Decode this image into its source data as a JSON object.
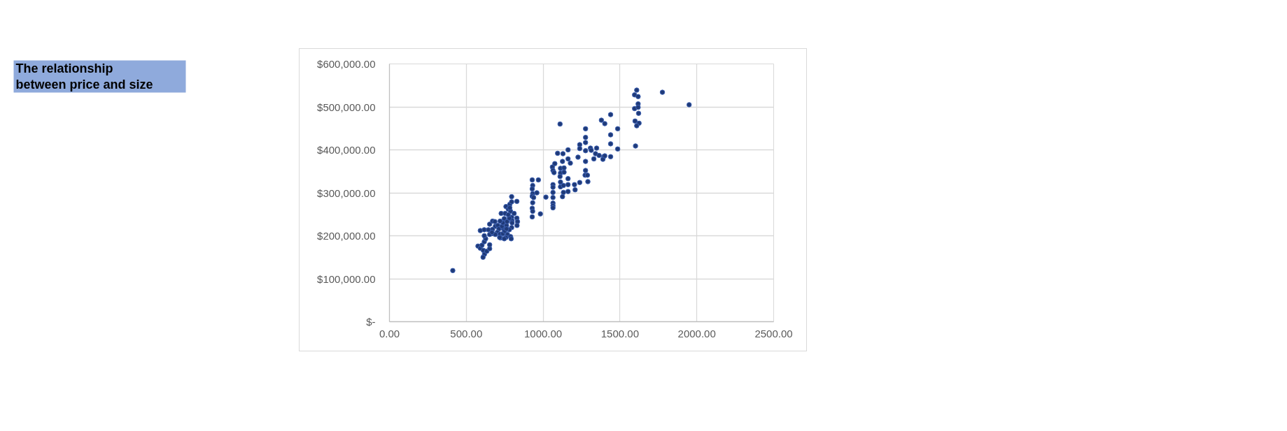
{
  "chart_data": {
    "type": "scatter",
    "title": "The relationship between price and size",
    "x": [
      412,
      576,
      591,
      602,
      611,
      618,
      609,
      633,
      652,
      652,
      617,
      626,
      617,
      591,
      617,
      644,
      652,
      671,
      686,
      689,
      671,
      667,
      652,
      705,
      712,
      702,
      720,
      723,
      738,
      742,
      732,
      738,
      720,
      727,
      747,
      753,
      758,
      773,
      783,
      795,
      795,
      829,
      788,
      795,
      811,
      798,
      829,
      833,
      830,
      798,
      795,
      780,
      768,
      788,
      792,
      758,
      750,
      762,
      765,
      780,
      773,
      783,
      762,
      747,
      717,
      689,
      667,
      929,
      932,
      929,
      932,
      929,
      938,
      932,
      929,
      932,
      929,
      969,
      959,
      982,
      1018,
      1064,
      1064,
      1064,
      1064,
      1064,
      1064,
      1064,
      1060,
      1064,
      1076,
      1071,
      1094,
      1129,
      1162,
      1162,
      1177,
      1126,
      1113,
      1136,
      1113,
      1136,
      1110,
      1113,
      1113,
      1132,
      1132,
      1126,
      1162,
      1162,
      1162,
      1204,
      1208,
      1238,
      1227,
      1238,
      1238,
      1110,
      1439,
      1379,
      1401,
      1485,
      1276,
      1439,
      1276,
      1276,
      1276,
      1308,
      1313,
      1348,
      1439,
      1485,
      1341,
      1364,
      1394,
      1389,
      1401,
      1439,
      1330,
      1276,
      1276,
      1273,
      1288,
      1291,
      1609,
      1595,
      1618,
      1618,
      1595,
      1618,
      1621,
      1598,
      1624,
      1609,
      1601,
      1776,
      1950
    ],
    "values": [
      119000,
      176000,
      171000,
      178000,
      166000,
      157000,
      150000,
      164000,
      170000,
      179000,
      186000,
      193000,
      200000,
      212000,
      214000,
      214000,
      227000,
      234000,
      233000,
      222000,
      215000,
      205000,
      203000,
      224000,
      216000,
      208000,
      204000,
      195000,
      205000,
      216000,
      222000,
      230000,
      234000,
      252000,
      240000,
      252000,
      268000,
      262000,
      273000,
      279000,
      291000,
      280000,
      257000,
      243000,
      252000,
      235000,
      241000,
      233000,
      224000,
      230000,
      219000,
      214000,
      203000,
      198000,
      193000,
      196000,
      211000,
      224000,
      233000,
      241000,
      249000,
      265000,
      216000,
      193000,
      196000,
      203000,
      208000,
      330000,
      317000,
      309000,
      298000,
      292000,
      289000,
      277000,
      264000,
      257000,
      244000,
      330000,
      300000,
      251000,
      290000,
      319000,
      313000,
      301000,
      289000,
      276000,
      270000,
      265000,
      360000,
      352000,
      368000,
      347000,
      392000,
      391000,
      400000,
      379000,
      369000,
      373000,
      357000,
      358000,
      346000,
      348000,
      338000,
      325000,
      314000,
      317000,
      301000,
      291000,
      333000,
      319000,
      303000,
      319000,
      307000,
      324000,
      383000,
      412000,
      403000,
      460000,
      482000,
      469000,
      461000,
      449000,
      449000,
      435000,
      429000,
      417000,
      398000,
      404000,
      399000,
      404000,
      414000,
      402000,
      391000,
      387000,
      384000,
      378000,
      386000,
      384000,
      379000,
      373000,
      352000,
      341000,
      341000,
      326000,
      539000,
      528000,
      524000,
      507000,
      496000,
      499000,
      485000,
      467000,
      462000,
      456000,
      409000,
      534000,
      505000
    ],
    "color": "#1f3a78",
    "marker": "circle",
    "xlim": [
      0,
      2500
    ],
    "xticks": [
      {
        "value": 0,
        "label": "0.00"
      },
      {
        "value": 500,
        "label": "500.00"
      },
      {
        "value": 1000,
        "label": "1000.00"
      },
      {
        "value": 1500,
        "label": "1500.00"
      },
      {
        "value": 2000,
        "label": "2000.00"
      },
      {
        "value": 2500,
        "label": "2500.00"
      }
    ],
    "ylim": [
      0,
      600000
    ],
    "yticks": [
      {
        "value": 0,
        "label": "$-"
      },
      {
        "value": 100000,
        "label": "$100,000.00"
      },
      {
        "value": 200000,
        "label": "$200,000.00"
      },
      {
        "value": 300000,
        "label": "$300,000.00"
      },
      {
        "value": 400000,
        "label": "$400,000.00"
      },
      {
        "value": 500000,
        "label": "$500,000.00"
      },
      {
        "value": 600000,
        "label": "$600,000.00"
      }
    ],
    "grid": true
  }
}
